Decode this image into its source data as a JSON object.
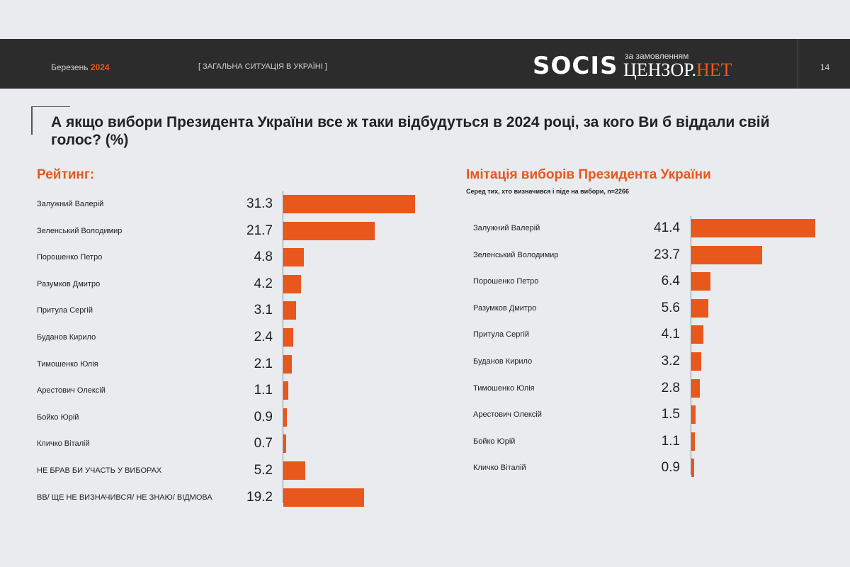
{
  "header": {
    "month": "Березень",
    "year": "2024",
    "section": "[ ЗАГАЛЬНА СИТУАЦІЯ В УКРАЇНІ ]",
    "logo": "SOCIS",
    "ordered_by": "за замовленням",
    "client_a": "ЦЕНЗОР.",
    "client_b": "НЕТ",
    "page": "14",
    "accent": "#e8581c"
  },
  "question": "А якщо вибори Президента України все ж таки відбудуться в 2024 році, за кого Ви б віддали свій голос? (%)",
  "chart_data": [
    {
      "type": "bar",
      "orientation": "horizontal",
      "title": "Рейтинг:",
      "subtitle": "",
      "categories": [
        "Залужний Валерій",
        "Зеленський Володимир",
        "Порошенко Петро",
        "Разумков Дмитро",
        "Притула Сергій",
        "Буданов Кирило",
        "Тимошенко Юлія",
        "Арестович Олексій",
        "Бойко Юрій",
        "Кличко Віталій",
        "НЕ БРАВ БИ УЧАСТЬ У ВИБОРАХ",
        "ВВ/ ЩЕ НЕ ВИЗНАЧИВСЯ/ НЕ ЗНАЮ/ ВІДМОВА"
      ],
      "values": [
        31.3,
        21.7,
        4.8,
        4.2,
        3.1,
        2.4,
        2.1,
        1.1,
        0.9,
        0.7,
        5.2,
        19.2
      ],
      "value_labels": [
        "31.3",
        "21.7",
        "4.8",
        "4.2",
        "3.1",
        "2.4",
        "2.1",
        "1.1",
        "0.9",
        "0.7",
        "5.2",
        "19.2"
      ],
      "xlim": [
        0,
        31.3
      ],
      "color": "#e8581c"
    },
    {
      "type": "bar",
      "orientation": "horizontal",
      "title": "Імітація виборів Президента України",
      "subtitle": "Серед тих, хто визначився і піде на вибори, n=2266",
      "categories": [
        "Залужний Валерій",
        "Зеленський Володимир",
        "Порошенко Петро",
        "Разумков Дмитро",
        "Притула Сергій",
        "Буданов Кирило",
        "Тимошенко Юлія",
        "Арестович Олексій",
        "Бойко Юрій",
        "Кличко Віталій"
      ],
      "values": [
        41.4,
        23.7,
        6.4,
        5.6,
        4.1,
        3.2,
        2.8,
        1.5,
        1.1,
        0.9
      ],
      "value_labels": [
        "41.4",
        "23.7",
        "6.4",
        "5.6",
        "4.1",
        "3.2",
        "2.8",
        "1.5",
        "1.1",
        "0.9"
      ],
      "xlim": [
        0,
        41.4
      ],
      "color": "#e8581c"
    }
  ]
}
